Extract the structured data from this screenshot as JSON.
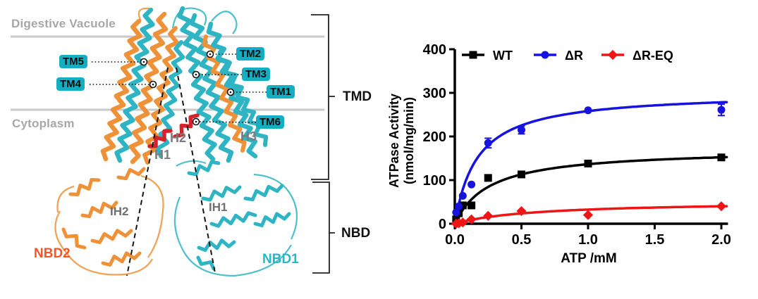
{
  "left_panel": {
    "compartment_labels": {
      "top": "Digestive Vacuole",
      "bottom": "Cytoplasm"
    },
    "tm_labels": [
      "TM5",
      "TM4",
      "TM2",
      "TM3",
      "TM1",
      "TM6"
    ],
    "helix_labels": [
      "H2",
      "H1",
      "H3"
    ],
    "internal_helix_labels": [
      "IH2",
      "IH1"
    ],
    "domain_labels": {
      "nbd2": "NBD2",
      "nbd1": "NBD1"
    },
    "bracket_labels": {
      "tmd": "TMD",
      "nbd": "NBD"
    }
  },
  "chart_data": {
    "type": "scatter",
    "title": "",
    "xlabel": "ATP /mM",
    "ylabel_line1": "ATPase Activity",
    "ylabel_line2": "(nmol/mg/min)",
    "xlim": [
      0,
      2
    ],
    "ylim": [
      0,
      400
    ],
    "xticks": [
      "0.0",
      "0.5",
      "1.0",
      "1.5",
      "2.0"
    ],
    "yticks": [
      "0",
      "100",
      "200",
      "300",
      "400"
    ],
    "grid": false,
    "legend_position": "top",
    "x": [
      0.01,
      0.03,
      0.06,
      0.125,
      0.25,
      0.5,
      1.0,
      2.0
    ],
    "series": [
      {
        "name": "WT",
        "marker": "square",
        "color": "#000000",
        "values": [
          10,
          24,
          42,
          42,
          105,
          113,
          138,
          152
        ],
        "errors": [
          0,
          0,
          0,
          0,
          0,
          0,
          0,
          0
        ],
        "fit": {
          "vmax": 172,
          "km": 0.26
        }
      },
      {
        "name": "ΔR",
        "marker": "circle",
        "color": "#1612e0",
        "values": [
          26,
          40,
          64,
          90,
          185,
          215,
          260,
          261
        ],
        "errors": [
          0,
          0,
          0,
          0,
          11,
          9,
          0,
          13
        ],
        "fit": {
          "vmax": 302,
          "km": 0.17
        }
      },
      {
        "name": "ΔR-EQ",
        "marker": "diamond",
        "color": "#ef1515",
        "values": [
          0,
          1,
          3,
          10,
          18,
          29,
          20,
          40
        ],
        "errors": [
          0,
          0,
          0,
          0,
          0,
          0,
          0,
          0
        ],
        "fit": {
          "vmax": 52,
          "km": 0.6
        }
      }
    ]
  },
  "colors": {
    "cyan": "#2fb4c3",
    "orange": "#ef9138",
    "red_helix": "#d8222a",
    "membrane_line": "#c9c9c9",
    "gray_label": "#a7a7a7",
    "tm_tag_bg": "#14aec2",
    "nbd2_label": "#f1562b",
    "nbd1_label": "#27b7c5",
    "axis": "#000000"
  }
}
